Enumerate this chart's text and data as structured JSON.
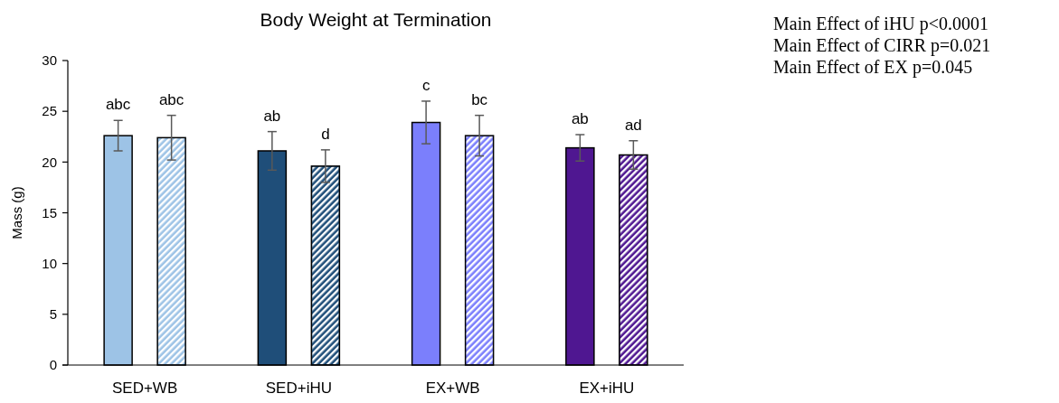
{
  "chart_data": {
    "type": "bar",
    "title": "Body Weight at Termination",
    "ylabel": "Mass (g)",
    "categories": [
      "SED+WB",
      "SED+iHU",
      "EX+WB",
      "EX+iHU"
    ],
    "series": [
      {
        "colors": [
          "#9dc3e6",
          "#1f4e79",
          "#7b7ffc",
          "#4f1791"
        ],
        "values": [
          22.6,
          21.1,
          23.9,
          21.4
        ],
        "errors": [
          1.5,
          1.9,
          2.1,
          1.3
        ],
        "value_labels": [
          "abc",
          "ab",
          "c",
          "ab"
        ]
      },
      {
        "colors": [
          "#9dc3e6",
          "#1f4e79",
          "#7b7ffc",
          "#4f1791"
        ],
        "values": [
          22.4,
          19.6,
          22.6,
          20.7
        ],
        "errors": [
          2.2,
          1.6,
          2.0,
          1.4
        ],
        "value_labels": [
          "abc",
          "d",
          "bc",
          "ad"
        ]
      }
    ],
    "ylim": [
      0,
      30
    ],
    "yticks": [
      0,
      5,
      10,
      15,
      20,
      25,
      30
    ],
    "grid": false,
    "annotations": [
      "Main Effect of iHU p<0.0001",
      "Main Effect of CIRR p=0.021",
      "Main Effect of EX p=0.045"
    ]
  }
}
